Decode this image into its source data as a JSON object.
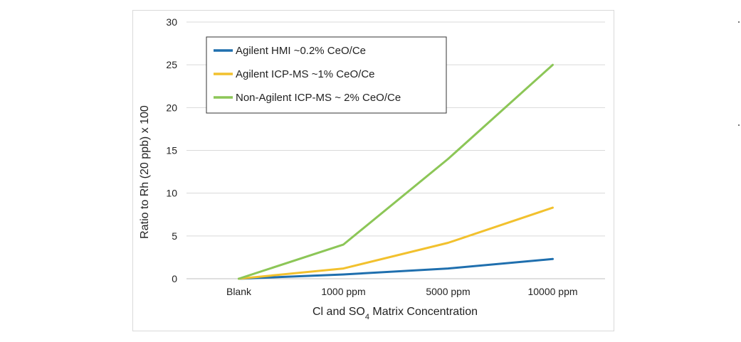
{
  "chart_data": {
    "type": "line",
    "xlabel_main": "Cl and SO",
    "xlabel_sub": "4",
    "xlabel_rest": " Matrix Concentration",
    "ylabel": "Ratio to Rh (20 ppb) x 100",
    "categories": [
      "Blank",
      "1000 ppm",
      "5000 ppm",
      "10000 ppm"
    ],
    "y_ticks": [
      "0",
      "5",
      "10",
      "15",
      "20",
      "25",
      "30"
    ],
    "ylim": [
      0,
      30
    ],
    "grid": "horizontal",
    "legend_position": "top-left",
    "series": [
      {
        "name": "Agilent HMI ~0.2% CeO/Ce",
        "color": "#1f6fae",
        "values": [
          0,
          0.5,
          1.2,
          2.3
        ]
      },
      {
        "name": "Agilent ICP-MS ~1% CeO/Ce",
        "color": "#f2c12e",
        "values": [
          0,
          1.2,
          4.2,
          8.3
        ]
      },
      {
        "name": "Non-Agilent ICP-MS ~ 2% CeO/Ce",
        "color": "#8cc657",
        "values": [
          0,
          4.0,
          14.0,
          25.0
        ]
      }
    ]
  }
}
